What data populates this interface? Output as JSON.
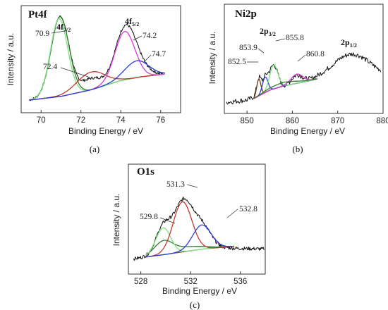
{
  "chart_data": [
    {
      "type": "line",
      "panel": "a",
      "title": "Pt4f",
      "caption": "(a)",
      "xlabel": "Binding Energy / eV",
      "ylabel": "Intensity / a.u.",
      "xlim": [
        69,
        77
      ],
      "ylim": [
        0,
        1
      ],
      "xticks": [
        70,
        72,
        74,
        76
      ],
      "tick_labels": [
        "70",
        "72",
        "74",
        "76"
      ],
      "baseline": [
        [
          69.4,
          0.06
        ],
        [
          71,
          0.1
        ],
        [
          72.5,
          0.17
        ],
        [
          74,
          0.27
        ],
        [
          75,
          0.31
        ],
        [
          76.2,
          0.34
        ]
      ],
      "peak_labels": [
        {
          "main": "4f",
          "sub": "7/2",
          "x": 70.9
        },
        {
          "main": "4f",
          "sub": "5/2",
          "x": 74.2
        }
      ],
      "annotations": [
        {
          "text": "70.9",
          "x": 70.9,
          "y": 0.93
        },
        {
          "text": "72.4",
          "x": 72.4,
          "y": 0.24
        },
        {
          "text": "74.2",
          "x": 74.2,
          "y": 0.79
        },
        {
          "text": "74.7",
          "x": 74.7,
          "y": 0.49
        }
      ],
      "series": [
        {
          "color": "#111111",
          "kind": "raw",
          "components": [
            {
              "center": 70.95,
              "height": 0.86,
              "width": 0.45
            },
            {
              "center": 72.5,
              "height": 0.12,
              "width": 0.5
            },
            {
              "center": 74.2,
              "height": 0.52,
              "width": 0.5
            },
            {
              "center": 74.8,
              "height": 0.12,
              "width": 0.55
            }
          ],
          "noise": 0.015
        },
        {
          "color": "#2e7d2e",
          "kind": "fit",
          "components": [
            {
              "center": 70.95,
              "height": 0.86,
              "width": 0.45
            }
          ]
        },
        {
          "color": "#7fe07f",
          "kind": "fit",
          "components": [
            {
              "center": 70.9,
              "height": 0.84,
              "width": 0.43
            }
          ]
        },
        {
          "color": "#c0392b",
          "kind": "fit",
          "components": [
            {
              "center": 72.5,
              "height": 0.19,
              "width": 0.7
            }
          ]
        },
        {
          "color": "#d63ad6",
          "kind": "fit",
          "components": [
            {
              "center": 74.2,
              "height": 0.52,
              "width": 0.5
            }
          ]
        },
        {
          "color": "#2a3fd6",
          "kind": "fit",
          "components": [
            {
              "center": 74.8,
              "height": 0.18,
              "width": 0.6
            }
          ]
        }
      ]
    },
    {
      "type": "line",
      "panel": "b",
      "title": "Ni2p",
      "caption": "(b)",
      "xlabel": "Binding Energy / eV",
      "ylabel": "Intensity / a.u.",
      "xlim": [
        845,
        880
      ],
      "ylim": [
        0,
        1
      ],
      "xticks": [
        850,
        860,
        870,
        880
      ],
      "tick_labels": [
        "850",
        "860",
        "870",
        "880"
      ],
      "baseline": [
        [
          851.5,
          0.1
        ],
        [
          855,
          0.22
        ],
        [
          858,
          0.28
        ],
        [
          862,
          0.33
        ],
        [
          865.5,
          0.38
        ]
      ],
      "peak_labels": [
        {
          "main": "2p",
          "sub": "3/2",
          "x": 855.8
        },
        {
          "main": "2p",
          "sub": "1/2",
          "x": 872
        }
      ],
      "annotations": [
        {
          "text": "852.5",
          "x": 852.5,
          "y": 0.38
        },
        {
          "text": "853.9",
          "x": 853.9,
          "y": 0.52
        },
        {
          "text": "855.8",
          "x": 855.8,
          "y": 0.6
        },
        {
          "text": "860.8",
          "x": 860.8,
          "y": 0.45
        }
      ],
      "series": [
        {
          "color": "#111111",
          "kind": "raw",
          "components": [
            {
              "center": 852.6,
              "height": 0.22,
              "width": 0.45
            },
            {
              "center": 854.0,
              "height": 0.2,
              "width": 0.7
            },
            {
              "center": 855.9,
              "height": 0.34,
              "width": 0.9
            },
            {
              "center": 861.0,
              "height": 0.12,
              "width": 1.2
            },
            {
              "center": 873.0,
              "height": 0.32,
              "width": 4.0
            }
          ],
          "raw_baseline": [
            [
              845.5,
              0.05
            ],
            [
              850,
              0.08
            ],
            [
              855,
              0.22
            ],
            [
              860,
              0.3
            ],
            [
              866,
              0.38
            ],
            [
              870,
              0.4
            ],
            [
              875,
              0.42
            ],
            [
              879.5,
              0.42
            ]
          ],
          "noise": 0.035
        },
        {
          "color": "#6b3a1a",
          "kind": "fit",
          "components": [
            {
              "center": 852.6,
              "height": 0.24,
              "width": 0.45
            }
          ]
        },
        {
          "color": "#2a3fd6",
          "kind": "fit",
          "components": [
            {
              "center": 854.0,
              "height": 0.22,
              "width": 0.6
            }
          ]
        },
        {
          "color": "#7fe07f",
          "kind": "fit",
          "components": [
            {
              "center": 855.9,
              "height": 0.34,
              "width": 0.9
            }
          ]
        },
        {
          "color": "#d63ad6",
          "kind": "fit",
          "components": [
            {
              "center": 861.0,
              "height": 0.13,
              "width": 1.3
            }
          ]
        },
        {
          "color": "#2e7d2e",
          "kind": "fit",
          "components": [
            {
              "center": 858.0,
              "height": 0.05,
              "width": 3.0
            }
          ]
        }
      ]
    },
    {
      "type": "line",
      "panel": "c",
      "title": "O1s",
      "caption": "(c)",
      "xlabel": "Binding Energy / eV",
      "ylabel": "Intensity / a.u.",
      "xlim": [
        527,
        538
      ],
      "ylim": [
        0,
        1
      ],
      "xticks": [
        528,
        532,
        536
      ],
      "tick_labels": [
        "528",
        "532",
        "536"
      ],
      "baseline": [
        [
          528.4,
          0.08
        ],
        [
          530,
          0.11
        ],
        [
          531.5,
          0.14
        ],
        [
          533,
          0.17
        ],
        [
          535.5,
          0.2
        ]
      ],
      "annotations": [
        {
          "text": "529.8",
          "x": 529.8,
          "y": 0.6
        },
        {
          "text": "531.3",
          "x": 531.3,
          "y": 0.93
        },
        {
          "text": "532.8",
          "x": 532.8,
          "y": 0.7
        }
      ],
      "series": [
        {
          "color": "#111111",
          "kind": "raw",
          "components": [
            {
              "center": 529.8,
              "height": 0.3,
              "width": 0.6
            },
            {
              "center": 531.4,
              "height": 0.55,
              "width": 0.75
            },
            {
              "center": 532.9,
              "height": 0.26,
              "width": 0.75
            }
          ],
          "raw_baseline": [
            [
              527.4,
              0.06
            ],
            [
              529,
              0.09
            ],
            [
              531,
              0.13
            ],
            [
              533,
              0.16
            ],
            [
              535,
              0.18
            ],
            [
              537.9,
              0.17
            ]
          ],
          "noise": 0.02
        },
        {
          "color": "#2e7d2e",
          "kind": "fit",
          "components": [
            {
              "center": 529.8,
              "height": 0.13,
              "width": 0.7
            },
            {
              "center": 531.4,
              "height": 0.05,
              "width": 1.5
            }
          ]
        },
        {
          "color": "#7fe07f",
          "kind": "fit",
          "components": [
            {
              "center": 529.8,
              "height": 0.3,
              "width": 0.6
            }
          ]
        },
        {
          "color": "#c0392b",
          "kind": "fit",
          "components": [
            {
              "center": 531.35,
              "height": 0.56,
              "width": 0.75
            }
          ]
        },
        {
          "color": "#2a3fd6",
          "kind": "fit",
          "components": [
            {
              "center": 532.9,
              "height": 0.27,
              "width": 0.75
            }
          ]
        }
      ]
    }
  ]
}
